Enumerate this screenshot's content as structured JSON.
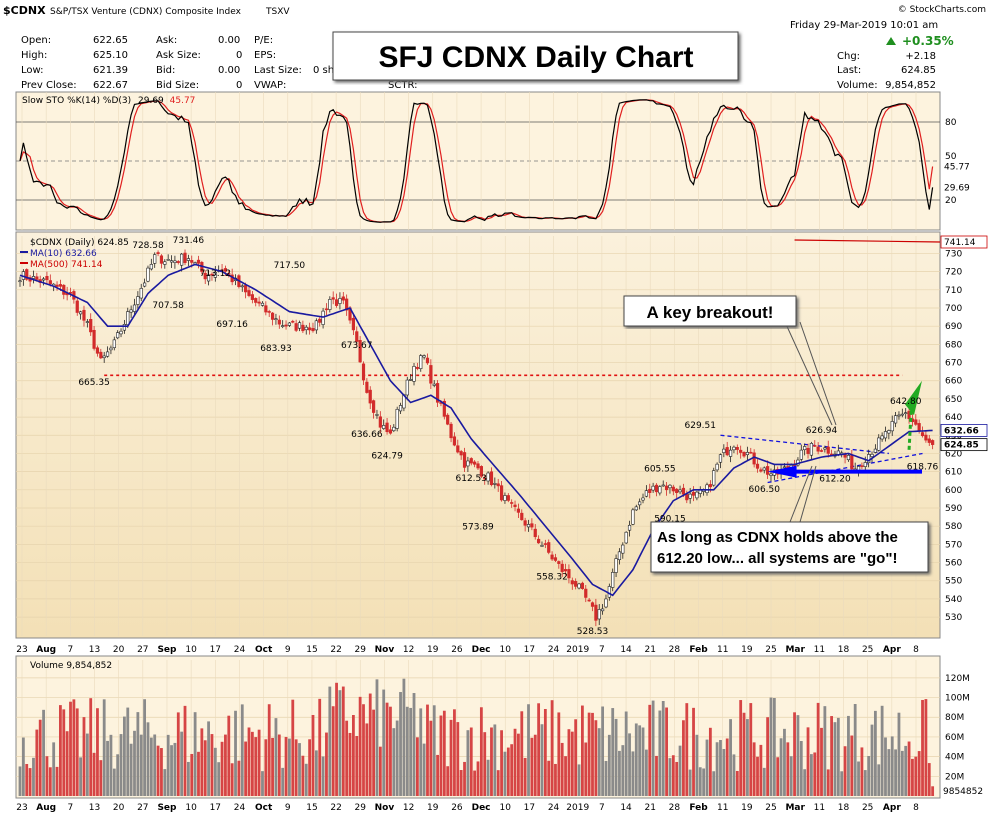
{
  "header": {
    "symbol": "$CDNX",
    "description": "S&P/TSX Venture (CDNX) Composite Index",
    "exchange": "TSXV",
    "watermark": "© StockCharts.com",
    "date_line": "Friday   29-Mar-2019  10:01 am"
  },
  "quote": {
    "open_label": "Open:",
    "open": "622.65",
    "high_label": "High:",
    "high": "625.10",
    "low_label": "Low:",
    "low": "621.39",
    "prev_close_label": "Prev Close:",
    "prev_close": "622.67",
    "ask_label": "Ask:",
    "ask": "0.00",
    "ask_size_label": "Ask Size:",
    "ask_size": "0",
    "bid_label": "Bid:",
    "bid": "0.00",
    "bid_size_label": "Bid Size:",
    "bid_size": "0",
    "pe_label": "P/E:",
    "eps_label": "EPS:",
    "last_size_label": "Last Size:",
    "last_size": "0 sh",
    "vwap_label": "VWAP:",
    "sctr_label": "SCTR:",
    "chg_pct": "+0.35%",
    "chg_label": "Chg:",
    "chg": "+2.18",
    "last_label": "Last:",
    "last": "624.85",
    "volume_label": "Volume:",
    "volume": "9,854,852"
  },
  "banner_title": "SFJ CDNX Daily Chart",
  "stochastic": {
    "legend_name": "Slow STO %K(14) %D(3)",
    "k_value": "29.69",
    "d_value": "45.77",
    "levels": [
      20,
      80
    ],
    "axis_labels": [
      "80",
      "50",
      "20"
    ]
  },
  "price_panel": {
    "legend_symbol": "$CDNX (Daily) 624.85",
    "ma10_legend": "MA(10) 632.66",
    "ma500_legend": "MA(500) 741.14",
    "ma500_value": "741.14",
    "ma10_value": "632.66",
    "last_value": "624.85",
    "ylim": [
      520,
      740
    ],
    "yticks": [
      530,
      540,
      550,
      560,
      570,
      580,
      590,
      600,
      610,
      620,
      630,
      640,
      650,
      660,
      670,
      680,
      690,
      700,
      710,
      720,
      730
    ]
  },
  "price_annotations": [
    "728.58",
    "731.46",
    "713.12",
    "717.50",
    "707.58",
    "697.16",
    "683.93",
    "665.35",
    "673.67",
    "636.66",
    "624.79",
    "612.53",
    "573.89",
    "558.32",
    "528.53",
    "605.55",
    "590.15",
    "629.51",
    "626.94",
    "606.50",
    "612.20",
    "642.80",
    "618.76"
  ],
  "callouts": {
    "breakout": "A key breakout!",
    "hold_line1": "As long as CDNX holds above the",
    "hold_line2": "612.20 low... all systems are \"go\"!"
  },
  "x_axis_labels": [
    "23",
    "Aug",
    "7",
    "13",
    "20",
    "27",
    "Sep",
    "10",
    "17",
    "24",
    "Oct",
    "9",
    "15",
    "22",
    "29",
    "Nov",
    "12",
    "19",
    "26",
    "Dec",
    "10",
    "17",
    "24",
    "2019",
    "7",
    "14",
    "21",
    "28",
    "Feb",
    "11",
    "19",
    "25",
    "Mar",
    "11",
    "18",
    "25",
    "Apr",
    "8"
  ],
  "volume_panel": {
    "legend": "Volume 9,854,852",
    "axis_labels": [
      "120M",
      "100M",
      "80M",
      "60M",
      "40M",
      "20M"
    ],
    "last_value": "9854852"
  },
  "colors": {
    "panel_bg": "#fdf3de",
    "up_candle": "#ffffff",
    "down_candle": "#d22b2b",
    "ma10": "#1a1aa0",
    "ma500": "#cc0000",
    "stoch_k": "#000000",
    "stoch_d": "#e02020",
    "breakout_arrow": "#22aa22",
    "support_bar": "#0000ff"
  },
  "chart_data": {
    "type": "candlestick",
    "title": "SFJ CDNX Daily Chart",
    "ylabel": "",
    "ylim": [
      520,
      740
    ],
    "close_path": [
      [
        0,
        718
      ],
      [
        8,
        714
      ],
      [
        15,
        707
      ],
      [
        20,
        690
      ],
      [
        24,
        670
      ],
      [
        28,
        680
      ],
      [
        33,
        700
      ],
      [
        37,
        715
      ],
      [
        40,
        728
      ],
      [
        45,
        726
      ],
      [
        50,
        728
      ],
      [
        55,
        718
      ],
      [
        60,
        722
      ],
      [
        63,
        716
      ],
      [
        68,
        706
      ],
      [
        72,
        700
      ],
      [
        77,
        692
      ],
      [
        80,
        690
      ],
      [
        84,
        690
      ],
      [
        88,
        690
      ],
      [
        92,
        705
      ],
      [
        96,
        702
      ],
      [
        100,
        680
      ],
      [
        103,
        655
      ],
      [
        107,
        636
      ],
      [
        110,
        630
      ],
      [
        113,
        648
      ],
      [
        117,
        668
      ],
      [
        120,
        673
      ],
      [
        124,
        650
      ],
      [
        128,
        630
      ],
      [
        132,
        615
      ],
      [
        136,
        612
      ],
      [
        140,
        605
      ],
      [
        145,
        592
      ],
      [
        150,
        582
      ],
      [
        155,
        570
      ],
      [
        160,
        558
      ],
      [
        165,
        548
      ],
      [
        168,
        540
      ],
      [
        171,
        530
      ],
      [
        174,
        540
      ],
      [
        178,
        566
      ],
      [
        182,
        588
      ],
      [
        186,
        598
      ],
      [
        190,
        603
      ],
      [
        195,
        600
      ],
      [
        200,
        595
      ],
      [
        204,
        600
      ],
      [
        208,
        618
      ],
      [
        212,
        626
      ],
      [
        216,
        620
      ],
      [
        220,
        612
      ],
      [
        224,
        608
      ],
      [
        228,
        612
      ],
      [
        232,
        620
      ],
      [
        236,
        624
      ],
      [
        240,
        622
      ],
      [
        244,
        620
      ],
      [
        248,
        612
      ],
      [
        252,
        620
      ],
      [
        256,
        628
      ],
      [
        260,
        638
      ],
      [
        263,
        642
      ],
      [
        266,
        636
      ],
      [
        269,
        626
      ],
      [
        271,
        624
      ]
    ],
    "ma10_path": [
      [
        0,
        718
      ],
      [
        10,
        712
      ],
      [
        20,
        703
      ],
      [
        26,
        690
      ],
      [
        32,
        690
      ],
      [
        38,
        708
      ],
      [
        44,
        718
      ],
      [
        52,
        724
      ],
      [
        60,
        720
      ],
      [
        70,
        710
      ],
      [
        80,
        698
      ],
      [
        90,
        695
      ],
      [
        98,
        700
      ],
      [
        104,
        680
      ],
      [
        110,
        660
      ],
      [
        116,
        648
      ],
      [
        122,
        652
      ],
      [
        128,
        645
      ],
      [
        134,
        628
      ],
      [
        140,
        615
      ],
      [
        148,
        598
      ],
      [
        156,
        580
      ],
      [
        164,
        562
      ],
      [
        170,
        548
      ],
      [
        176,
        542
      ],
      [
        182,
        556
      ],
      [
        188,
        578
      ],
      [
        194,
        594
      ],
      [
        200,
        600
      ],
      [
        206,
        600
      ],
      [
        212,
        612
      ],
      [
        218,
        618
      ],
      [
        224,
        614
      ],
      [
        230,
        614
      ],
      [
        238,
        618
      ],
      [
        246,
        620
      ],
      [
        252,
        616
      ],
      [
        258,
        624
      ],
      [
        264,
        632
      ],
      [
        271,
        632.66
      ]
    ],
    "ma500_level": 741.14,
    "key_points": [
      {
        "label": "728.58",
        "value": 728.58
      },
      {
        "label": "731.46",
        "value": 731.46
      },
      {
        "label": "713.12",
        "value": 713.12
      },
      {
        "label": "717.50",
        "value": 717.5
      },
      {
        "label": "707.58",
        "value": 707.58
      },
      {
        "label": "697.16",
        "value": 697.16
      },
      {
        "label": "683.93",
        "value": 683.93
      },
      {
        "label": "665.35",
        "value": 665.35
      },
      {
        "label": "673.67",
        "value": 673.67
      },
      {
        "label": "636.66",
        "value": 636.66
      },
      {
        "label": "624.79",
        "value": 624.79
      },
      {
        "label": "612.53",
        "value": 612.53
      },
      {
        "label": "573.89",
        "value": 573.89
      },
      {
        "label": "558.32",
        "value": 558.32
      },
      {
        "label": "528.53",
        "value": 528.53
      },
      {
        "label": "605.55",
        "value": 605.55
      },
      {
        "label": "590.15",
        "value": 590.15
      },
      {
        "label": "629.51",
        "value": 629.51
      },
      {
        "label": "626.94",
        "value": 626.94
      },
      {
        "label": "606.50",
        "value": 606.5
      },
      {
        "label": "612.20",
        "value": 612.2
      },
      {
        "label": "642.80",
        "value": 642.8
      },
      {
        "label": "618.76",
        "value": 618.76
      }
    ],
    "resistance_level": 663,
    "support_level": 610,
    "stochastic_levels": [
      20,
      50,
      80
    ],
    "last": 624.85
  }
}
